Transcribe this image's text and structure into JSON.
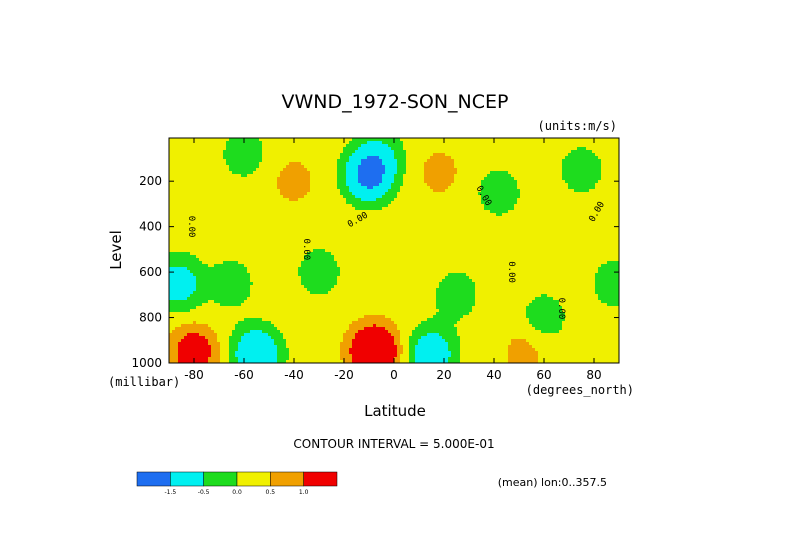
{
  "chart_data": {
    "type": "heatmap",
    "title": "VWND_1972-SON_NCEP",
    "units_label": "(units:m/s)",
    "xlabel": "Latitude",
    "ylabel": "Level",
    "x_unit_label": "(degrees_north)",
    "y_unit_label": "(millibar)",
    "xlim": [
      -90,
      90
    ],
    "ylim": [
      1000,
      10
    ],
    "x_ticks": [
      -80,
      -60,
      -40,
      -20,
      0,
      20,
      40,
      60,
      80
    ],
    "y_ticks": [
      200,
      400,
      600,
      800,
      1000
    ],
    "contour_interval_label": "CONTOUR INTERVAL = 5.000E-01",
    "zero_contour_label": "0.00",
    "subtitle": "(mean) lon:0..357.5",
    "colorbar": {
      "colors": [
        "#1e6ef0",
        "#00f0f0",
        "#1edc1e",
        "#f0f000",
        "#f0a000",
        "#f00000"
      ],
      "tick_labels": [
        "-1.5",
        "-0.5",
        "0.0",
        "0.5",
        "1.0"
      ]
    },
    "features": [
      {
        "lat": -8,
        "level": 950,
        "value": 2.5
      },
      {
        "lat": -10,
        "level": 170,
        "value": -2.0
      },
      {
        "lat": -55,
        "level": 960,
        "value": -1.5
      },
      {
        "lat": 15,
        "level": 960,
        "value": -1.2
      },
      {
        "lat": -80,
        "level": 950,
        "value": 1.6
      },
      {
        "lat": -86,
        "level": 650,
        "value": -1.0
      },
      {
        "lat": 52,
        "level": 950,
        "value": 0.7
      },
      {
        "lat": -40,
        "level": 200,
        "value": 0.7
      },
      {
        "lat": 18,
        "level": 160,
        "value": 0.7
      },
      {
        "lat": -72,
        "level": 840,
        "value": 0.2
      },
      {
        "lat": -65,
        "level": 650,
        "value": -0.3
      },
      {
        "lat": -30,
        "level": 600,
        "value": -0.3
      },
      {
        "lat": 25,
        "level": 700,
        "value": -0.3
      },
      {
        "lat": 42,
        "level": 250,
        "value": -0.3
      },
      {
        "lat": 60,
        "level": 800,
        "value": -0.3
      },
      {
        "lat": 75,
        "level": 150,
        "value": -0.3
      },
      {
        "lat": 88,
        "level": 650,
        "value": -0.3
      },
      {
        "lat": -5,
        "level": 80,
        "value": -0.3
      },
      {
        "lat": -60,
        "level": 80,
        "value": -0.3
      }
    ]
  }
}
